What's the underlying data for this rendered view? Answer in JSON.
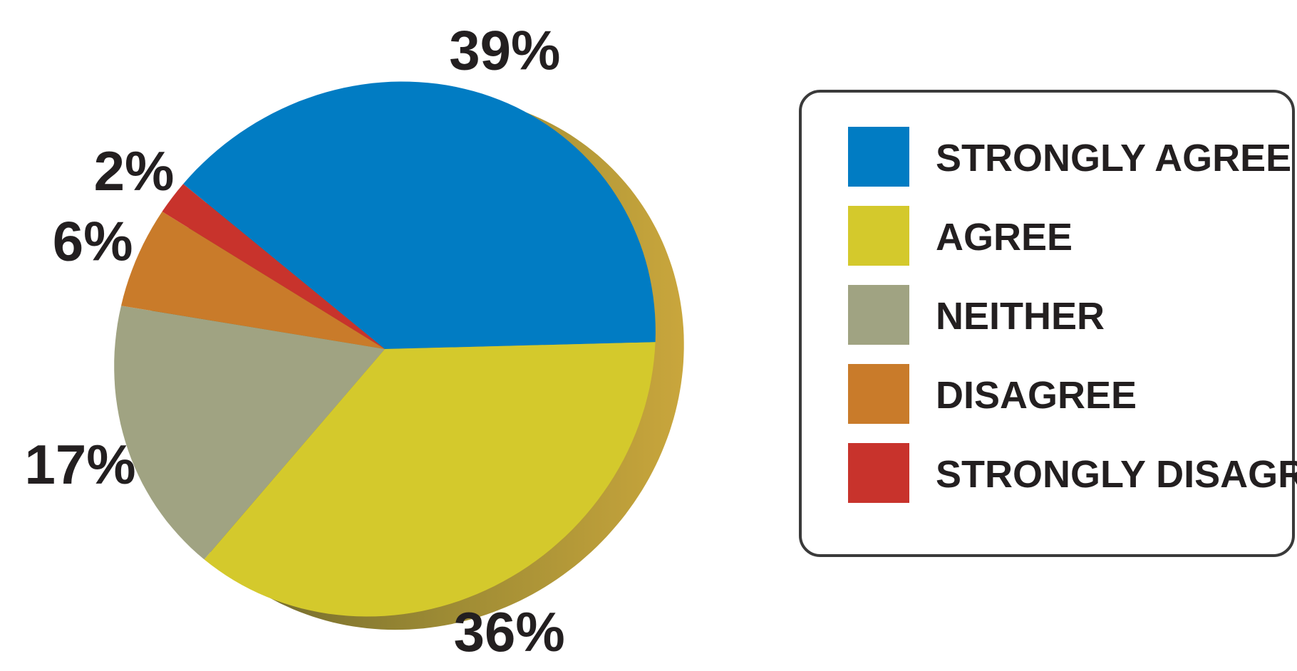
{
  "chart_data": {
    "type": "pie",
    "style": "3d-tilted",
    "slices": [
      {
        "label": "STRONGLY AGREE",
        "value": 39,
        "display": "39%",
        "color": "#017cc3"
      },
      {
        "label": "AGREE",
        "value": 36,
        "display": "36%",
        "color": "#d4c92c"
      },
      {
        "label": "NEITHER",
        "value": 17,
        "display": "17%",
        "color": "#a0a382"
      },
      {
        "label": "DISAGREE",
        "value": 6,
        "display": "6%",
        "color": "#c97b2a"
      },
      {
        "label": "STRONGLY DISAGREE",
        "value": 2,
        "display": "2%",
        "color": "#c8332c"
      }
    ],
    "legend_position": "right",
    "side_color": "#b8a03a"
  }
}
